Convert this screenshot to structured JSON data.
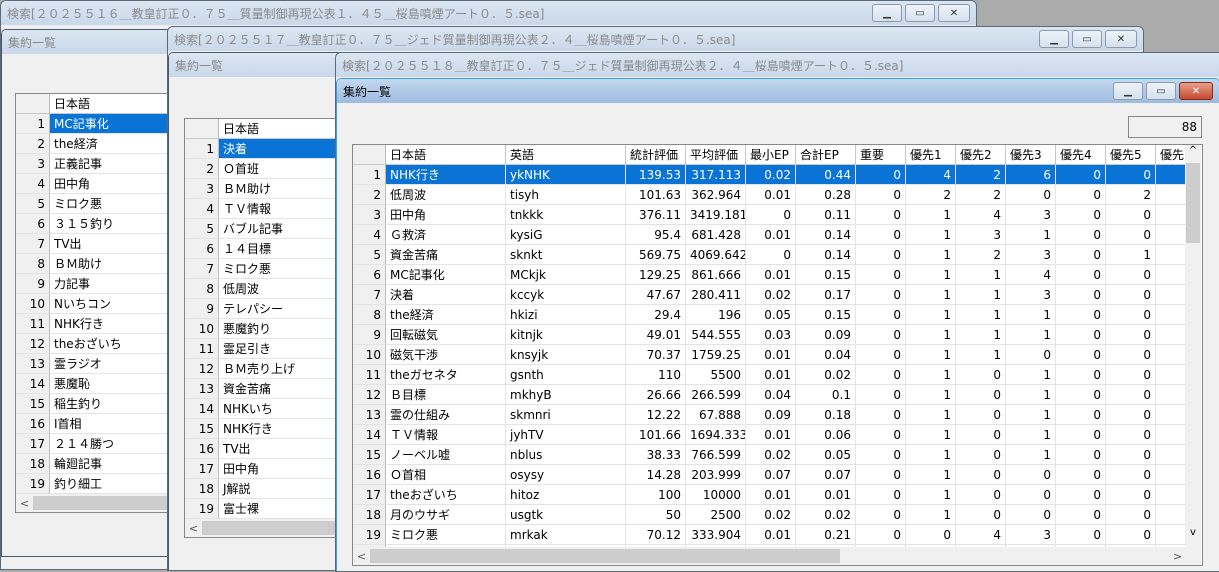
{
  "windows": [
    {
      "title": "検索[２０２５５１６＿教皇訂正０．７５＿質量制御再現公表１．４５＿桜島噴煙アート０．５.sea]",
      "child_title": "集約一覧",
      "columns": [
        "日本語"
      ],
      "rows": [
        [
          "MC記事化"
        ],
        [
          "the経済"
        ],
        [
          "正義記事"
        ],
        [
          "田中角"
        ],
        [
          "ミロク悪"
        ],
        [
          "３１５釣り"
        ],
        [
          "TV出"
        ],
        [
          "ＢＭ助け"
        ],
        [
          "力記事"
        ],
        [
          "Nいちコン"
        ],
        [
          "NHK行き"
        ],
        [
          "theおざいち"
        ],
        [
          "霊ラジオ"
        ],
        [
          "悪魔恥"
        ],
        [
          "稲生釣り"
        ],
        [
          "I首相"
        ],
        [
          "２１４勝つ"
        ],
        [
          "輪廻記事"
        ],
        [
          "釣り細工"
        ]
      ],
      "selected_row": 1
    },
    {
      "title": "検索[２０２５５１７＿教皇訂正０．７５＿ジェド質量制御再現公表２．４＿桜島噴煙アート０．５.sea]",
      "child_title": "集約一覧",
      "columns": [
        "日本語"
      ],
      "rows": [
        [
          "決着"
        ],
        [
          "Ｏ首班"
        ],
        [
          "ＢＭ助け"
        ],
        [
          "ＴＶ情報"
        ],
        [
          "バブル記事"
        ],
        [
          "１４目標"
        ],
        [
          "ミロク悪"
        ],
        [
          "低周波"
        ],
        [
          "テレパシー"
        ],
        [
          "悪魔釣り"
        ],
        [
          "霊足引き"
        ],
        [
          "ＢＭ売り上げ"
        ],
        [
          "資金苦痛"
        ],
        [
          "NHKいち"
        ],
        [
          "NHK行き"
        ],
        [
          "TV出"
        ],
        [
          "田中角"
        ],
        [
          "J解説"
        ],
        [
          "富士裸"
        ]
      ],
      "selected_row": 1
    },
    {
      "title": "検索[２０２５５１８＿教皇訂正０．７５＿ジェド質量制御再現公表２．４＿桜島噴煙アート０．５.sea]",
      "child_title": "集約一覧",
      "counter": "88",
      "columns": [
        "日本語",
        "英語",
        "統計評価",
        "平均評価",
        "最小EP",
        "合計EP",
        "重要",
        "優先1",
        "優先2",
        "優先3",
        "優先4",
        "優先5",
        "優先"
      ],
      "rows": [
        [
          "NHK行き",
          "ykNHK",
          "139.53",
          "317.113",
          "0.02",
          "0.44",
          "0",
          "4",
          "2",
          "6",
          "0",
          "0",
          ""
        ],
        [
          "低周波",
          "tisyh",
          "101.63",
          "362.964",
          "0.01",
          "0.28",
          "0",
          "2",
          "2",
          "0",
          "0",
          "2",
          ""
        ],
        [
          "田中角",
          "tnkkk",
          "376.11",
          "3419.181",
          "0",
          "0.11",
          "0",
          "1",
          "4",
          "3",
          "0",
          "0",
          ""
        ],
        [
          "Ｇ救済",
          "kysiG",
          "95.4",
          "681.428",
          "0.01",
          "0.14",
          "0",
          "1",
          "3",
          "1",
          "0",
          "0",
          ""
        ],
        [
          "資金苦痛",
          "sknkt",
          "569.75",
          "4069.642",
          "0",
          "0.14",
          "0",
          "1",
          "2",
          "3",
          "0",
          "1",
          ""
        ],
        [
          "MC記事化",
          "MCkjk",
          "129.25",
          "861.666",
          "0.01",
          "0.15",
          "0",
          "1",
          "1",
          "4",
          "0",
          "0",
          ""
        ],
        [
          "決着",
          "kccyk",
          "47.67",
          "280.411",
          "0.02",
          "0.17",
          "0",
          "1",
          "1",
          "3",
          "0",
          "0",
          ""
        ],
        [
          "the経済",
          "hkizi",
          "29.4",
          "196",
          "0.05",
          "0.15",
          "0",
          "1",
          "1",
          "1",
          "0",
          "0",
          ""
        ],
        [
          "回転磁気",
          "kitnjk",
          "49.01",
          "544.555",
          "0.03",
          "0.09",
          "0",
          "1",
          "1",
          "1",
          "0",
          "0",
          ""
        ],
        [
          "磁気干渉",
          "knsyjk",
          "70.37",
          "1759.25",
          "0.01",
          "0.04",
          "0",
          "1",
          "1",
          "0",
          "0",
          "0",
          ""
        ],
        [
          "theガセネタ",
          "gsnth",
          "110",
          "5500",
          "0.01",
          "0.02",
          "0",
          "1",
          "0",
          "1",
          "0",
          "0",
          ""
        ],
        [
          "Ｂ目標",
          "mkhyB",
          "26.66",
          "266.599",
          "0.04",
          "0.1",
          "0",
          "1",
          "0",
          "1",
          "0",
          "0",
          ""
        ],
        [
          "霊の仕組み",
          "skmnri",
          "12.22",
          "67.888",
          "0.09",
          "0.18",
          "0",
          "1",
          "0",
          "1",
          "0",
          "0",
          ""
        ],
        [
          "ＴＶ情報",
          "jyhTV",
          "101.66",
          "1694.333",
          "0.01",
          "0.06",
          "0",
          "1",
          "0",
          "1",
          "0",
          "0",
          ""
        ],
        [
          "ノーベル嘘",
          "nblus",
          "38.33",
          "766.599",
          "0.02",
          "0.05",
          "0",
          "1",
          "0",
          "1",
          "0",
          "0",
          ""
        ],
        [
          "Ｏ首相",
          "osysy",
          "14.28",
          "203.999",
          "0.07",
          "0.07",
          "0",
          "1",
          "0",
          "0",
          "0",
          "0",
          ""
        ],
        [
          "theおざいち",
          "hitoz",
          "100",
          "10000",
          "0.01",
          "0.01",
          "0",
          "1",
          "0",
          "0",
          "0",
          "0",
          ""
        ],
        [
          "月のウサギ",
          "usgtk",
          "50",
          "2500",
          "0.02",
          "0.02",
          "0",
          "1",
          "0",
          "0",
          "0",
          "0",
          ""
        ],
        [
          "ミロク悪",
          "mrkak",
          "70.12",
          "333.904",
          "0.01",
          "0.21",
          "0",
          "0",
          "4",
          "3",
          "0",
          "0",
          ""
        ]
      ],
      "selected_row": 1
    }
  ],
  "icons": {
    "minimize": "minimize-icon",
    "maximize": "maximize-icon",
    "close": "close-icon",
    "scroll_left": "chevron-left-icon",
    "scroll_right": "chevron-right-icon",
    "scroll_up": "chevron-up-icon",
    "scroll_down": "chevron-down-icon"
  },
  "colors": {
    "selection": "#0a74d6",
    "close_active": "#c44a30"
  }
}
